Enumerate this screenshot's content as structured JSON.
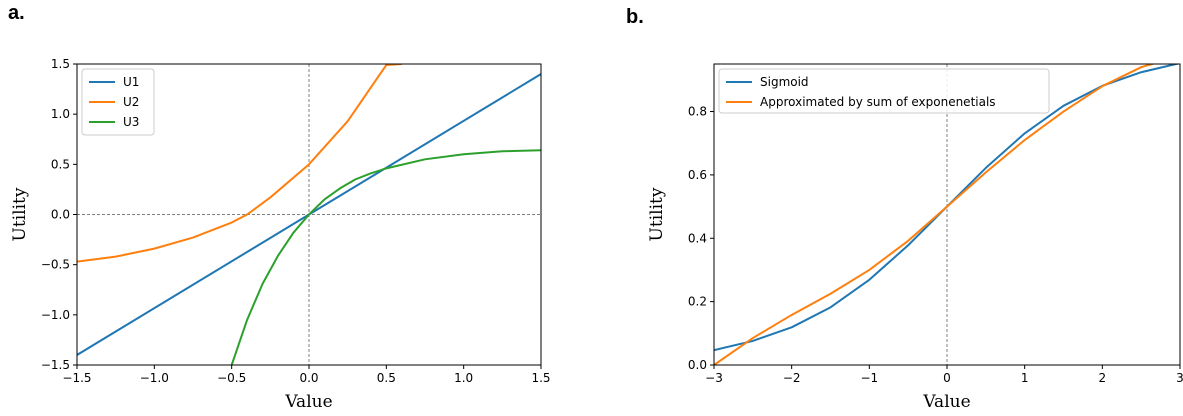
{
  "panels": [
    {
      "label": "a."
    },
    {
      "label": "b."
    }
  ],
  "chart_data": [
    {
      "type": "line",
      "xlabel": "Value",
      "ylabel": "Utility",
      "xlim": [
        -1.5,
        1.5
      ],
      "ylim": [
        -1.5,
        1.5
      ],
      "xticks": [
        -1.5,
        -1.0,
        -0.5,
        0.0,
        0.5,
        1.0,
        1.5
      ],
      "xtick_labels": [
        "−1.5",
        "−1.0",
        "−0.5",
        "0.0",
        "0.5",
        "1.0",
        "1.5"
      ],
      "yticks": [
        -1.5,
        -1.0,
        -0.5,
        0.0,
        0.5,
        1.0,
        1.5
      ],
      "ytick_labels": [
        "−1.5",
        "−1.0",
        "−0.5",
        "0.0",
        "0.5",
        "1.0",
        "1.5"
      ],
      "legend": "upper left",
      "reference_lines": {
        "x": 0,
        "y": 0,
        "style": "dashed"
      },
      "series": [
        {
          "name": "U1",
          "color": "#1f77b4",
          "x": [
            -1.5,
            1.5
          ],
          "y": [
            -1.4,
            1.4
          ]
        },
        {
          "name": "U2",
          "color": "#ff7f0e",
          "x": [
            -1.5,
            -1.25,
            -1.0,
            -0.75,
            -0.5,
            -0.4,
            -0.25,
            0.0,
            0.25,
            0.5,
            0.6
          ],
          "y": [
            -0.47,
            -0.42,
            -0.34,
            -0.23,
            -0.08,
            0.0,
            0.17,
            0.5,
            0.93,
            1.49,
            1.5
          ]
        },
        {
          "name": "U3",
          "color": "#2ca02c",
          "x": [
            -0.5,
            -0.4,
            -0.3,
            -0.2,
            -0.1,
            0.0,
            0.1,
            0.2,
            0.3,
            0.4,
            0.5,
            0.75,
            1.0,
            1.25,
            1.5
          ],
          "y": [
            -1.5,
            -1.05,
            -0.69,
            -0.41,
            -0.18,
            0.0,
            0.15,
            0.26,
            0.35,
            0.41,
            0.46,
            0.55,
            0.6,
            0.63,
            0.64
          ]
        }
      ]
    },
    {
      "type": "line",
      "xlabel": "Value",
      "ylabel": "Utility",
      "xlim": [
        -3,
        3
      ],
      "ylim": [
        0.0,
        0.95
      ],
      "xticks": [
        -3,
        -2,
        -1,
        0,
        1,
        2,
        3
      ],
      "xtick_labels": [
        "−3",
        "−2",
        "−1",
        "0",
        "1",
        "2",
        "3"
      ],
      "yticks": [
        0.0,
        0.2,
        0.4,
        0.6,
        0.8
      ],
      "ytick_labels": [
        "0.0",
        "0.2",
        "0.4",
        "0.6",
        "0.8"
      ],
      "legend": "upper left",
      "reference_lines": {
        "x": 0,
        "y": 0,
        "style": "dashed"
      },
      "series": [
        {
          "name": "Sigmoid",
          "color": "#1f77b4",
          "x": [
            -3,
            -2.5,
            -2,
            -1.5,
            -1,
            -0.5,
            0,
            0.5,
            1,
            1.5,
            2,
            2.5,
            3
          ],
          "y": [
            0.047,
            0.076,
            0.119,
            0.182,
            0.269,
            0.378,
            0.5,
            0.622,
            0.731,
            0.818,
            0.881,
            0.924,
            0.953
          ]
        },
        {
          "name": "Approximated by sum of exponenetials",
          "color": "#ff7f0e",
          "x": [
            -3,
            -2.5,
            -2,
            -1.5,
            -1,
            -0.5,
            0,
            0.5,
            1,
            1.5,
            2,
            2.5,
            3
          ],
          "y": [
            0.0,
            0.085,
            0.158,
            0.225,
            0.3,
            0.392,
            0.5,
            0.608,
            0.71,
            0.8,
            0.88,
            0.94,
            0.975
          ]
        }
      ]
    }
  ]
}
